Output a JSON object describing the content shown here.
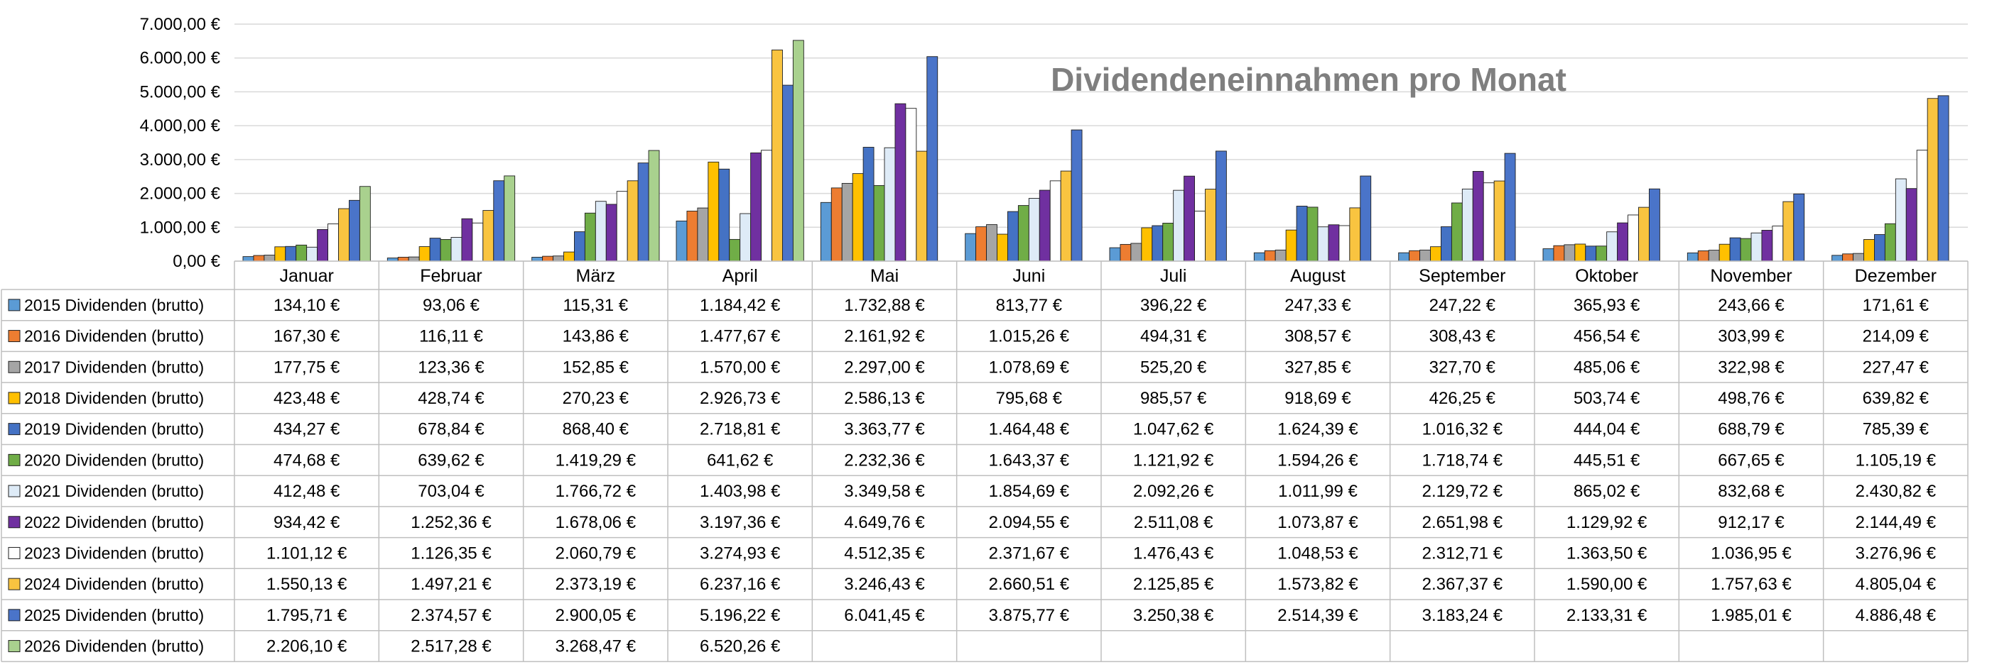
{
  "chart_data": {
    "type": "bar",
    "title": "Dividendeneinnahmen pro Monat",
    "xlabel": "",
    "ylabel": "",
    "ylim": [
      0,
      7000
    ],
    "yticks": [
      0,
      1000,
      2000,
      3000,
      4000,
      5000,
      6000,
      7000
    ],
    "ytick_labels": [
      "0,00 €",
      "1.000,00 €",
      "2.000,00 €",
      "3.000,00 €",
      "4.000,00 €",
      "5.000,00 €",
      "6.000,00 €",
      "7.000,00 €"
    ],
    "grid": true,
    "legend": "data table below chart",
    "categories": [
      "Januar",
      "Februar",
      "März",
      "April",
      "Mai",
      "Juni",
      "Juli",
      "August",
      "September",
      "Oktober",
      "November",
      "Dezember"
    ],
    "series": [
      {
        "name": "2015 Dividenden (brutto)",
        "color": "#5b9bd5",
        "values": [
          134.1,
          93.06,
          115.31,
          1184.42,
          1732.88,
          813.77,
          396.22,
          247.33,
          247.22,
          365.93,
          243.66,
          171.61
        ],
        "labels": [
          "134,10 €",
          "93,06 €",
          "115,31 €",
          "1.184,42 €",
          "1.732,88 €",
          "813,77 €",
          "396,22 €",
          "247,33 €",
          "247,22 €",
          "365,93 €",
          "243,66 €",
          "171,61 €"
        ]
      },
      {
        "name": "2016 Dividenden (brutto)",
        "color": "#ed7d31",
        "values": [
          167.3,
          116.11,
          143.86,
          1477.67,
          2161.92,
          1015.26,
          494.31,
          308.57,
          308.43,
          456.54,
          303.99,
          214.09
        ],
        "labels": [
          "167,30 €",
          "116,11 €",
          "143,86 €",
          "1.477,67 €",
          "2.161,92 €",
          "1.015,26 €",
          "494,31 €",
          "308,57 €",
          "308,43 €",
          "456,54 €",
          "303,99 €",
          "214,09 €"
        ]
      },
      {
        "name": "2017 Dividenden (brutto)",
        "color": "#a5a5a5",
        "values": [
          177.75,
          123.36,
          152.85,
          1570.0,
          2297.0,
          1078.69,
          525.2,
          327.85,
          327.7,
          485.06,
          322.98,
          227.47
        ],
        "labels": [
          "177,75 €",
          "123,36 €",
          "152,85 €",
          "1.570,00 €",
          "2.297,00 €",
          "1.078,69 €",
          "525,20 €",
          "327,85 €",
          "327,70 €",
          "485,06 €",
          "322,98 €",
          "227,47 €"
        ]
      },
      {
        "name": "2018 Dividenden (brutto)",
        "color": "#ffc000",
        "values": [
          423.48,
          428.74,
          270.23,
          2926.73,
          2586.13,
          795.68,
          985.57,
          918.69,
          426.25,
          503.74,
          498.76,
          639.82
        ],
        "labels": [
          "423,48 €",
          "428,74 €",
          "270,23 €",
          "2.926,73 €",
          "2.586,13 €",
          "795,68 €",
          "985,57 €",
          "918,69 €",
          "426,25 €",
          "503,74 €",
          "498,76 €",
          "639,82 €"
        ]
      },
      {
        "name": "2019 Dividenden (brutto)",
        "color": "#4472c4",
        "values": [
          434.27,
          678.84,
          868.4,
          2718.81,
          3363.77,
          1464.48,
          1047.62,
          1624.39,
          1016.32,
          444.04,
          688.79,
          785.39
        ],
        "labels": [
          "434,27 €",
          "678,84 €",
          "868,40 €",
          "2.718,81 €",
          "3.363,77 €",
          "1.464,48 €",
          "1.047,62 €",
          "1.624,39 €",
          "1.016,32 €",
          "444,04 €",
          "688,79 €",
          "785,39 €"
        ]
      },
      {
        "name": "2020 Dividenden (brutto)",
        "color": "#70ad47",
        "values": [
          474.68,
          639.62,
          1419.29,
          641.62,
          2232.36,
          1643.37,
          1121.92,
          1594.26,
          1718.74,
          445.51,
          667.65,
          1105.19
        ],
        "labels": [
          "474,68 €",
          "639,62 €",
          "1.419,29 €",
          "641,62 €",
          "2.232,36 €",
          "1.643,37 €",
          "1.121,92 €",
          "1.594,26 €",
          "1.718,74 €",
          "445,51 €",
          "667,65 €",
          "1.105,19 €"
        ]
      },
      {
        "name": "2021 Dividenden (brutto)",
        "color": "#deebf7",
        "values": [
          412.48,
          703.04,
          1766.72,
          1403.98,
          3349.58,
          1854.69,
          2092.26,
          1011.99,
          2129.72,
          865.02,
          832.68,
          2430.82
        ],
        "labels": [
          "412,48 €",
          "703,04 €",
          "1.766,72 €",
          "1.403,98 €",
          "3.349,58 €",
          "1.854,69 €",
          "2.092,26 €",
          "1.011,99 €",
          "2.129,72 €",
          "865,02 €",
          "832,68 €",
          "2.430,82 €"
        ]
      },
      {
        "name": "2022 Dividenden (brutto)",
        "color": "#7030a0",
        "values": [
          934.42,
          1252.36,
          1678.06,
          3197.36,
          4649.76,
          2094.55,
          2511.08,
          1073.87,
          2651.98,
          1129.92,
          912.17,
          2144.49
        ],
        "labels": [
          "934,42 €",
          "1.252,36 €",
          "1.678,06 €",
          "3.197,36 €",
          "4.649,76 €",
          "2.094,55 €",
          "2.511,08 €",
          "1.073,87 €",
          "2.651,98 €",
          "1.129,92 €",
          "912,17 €",
          "2.144,49 €"
        ]
      },
      {
        "name": "2023 Dividenden (brutto)",
        "color": "#ffffff",
        "values": [
          1101.12,
          1126.35,
          2060.79,
          3274.93,
          4512.35,
          2371.67,
          1476.43,
          1048.53,
          2312.71,
          1363.5,
          1036.95,
          3276.96
        ],
        "labels": [
          "1.101,12 €",
          "1.126,35 €",
          "2.060,79 €",
          "3.274,93 €",
          "4.512,35 €",
          "2.371,67 €",
          "1.476,43 €",
          "1.048,53 €",
          "2.312,71 €",
          "1.363,50 €",
          "1.036,95 €",
          "3.276,96 €"
        ]
      },
      {
        "name": "2024 Dividenden (brutto)",
        "color": "#f9c440",
        "values": [
          1550.13,
          1497.21,
          2373.19,
          6237.16,
          3246.43,
          2660.51,
          2125.85,
          1573.82,
          2367.37,
          1590.0,
          1757.63,
          4805.04
        ],
        "labels": [
          "1.550,13 €",
          "1.497,21 €",
          "2.373,19 €",
          "6.237,16 €",
          "3.246,43 €",
          "2.660,51 €",
          "2.125,85 €",
          "1.573,82 €",
          "2.367,37 €",
          "1.590,00 €",
          "1.757,63 €",
          "4.805,04 €"
        ]
      },
      {
        "name": "2025 Dividenden (brutto)",
        "color": "#4a74c9",
        "values": [
          1795.71,
          2374.57,
          2900.05,
          5196.22,
          6041.45,
          3875.77,
          3250.38,
          2514.39,
          3183.24,
          2133.31,
          1985.01,
          4886.48
        ],
        "labels": [
          "1.795,71 €",
          "2.374,57 €",
          "2.900,05 €",
          "5.196,22 €",
          "6.041,45 €",
          "3.875,77 €",
          "3.250,38 €",
          "2.514,39 €",
          "3.183,24 €",
          "2.133,31 €",
          "1.985,01 €",
          "4.886,48 €"
        ]
      },
      {
        "name": "2026 Dividenden (brutto)",
        "color": "#a9d18e",
        "values": [
          2206.1,
          2517.28,
          3268.47,
          6520.26,
          null,
          null,
          null,
          null,
          null,
          null,
          null,
          null
        ],
        "labels": [
          "2.206,10 €",
          "2.517,28 €",
          "3.268,47 €",
          "6.520,26 €",
          "",
          "",
          "",
          "",
          "",
          "",
          "",
          ""
        ]
      }
    ]
  }
}
